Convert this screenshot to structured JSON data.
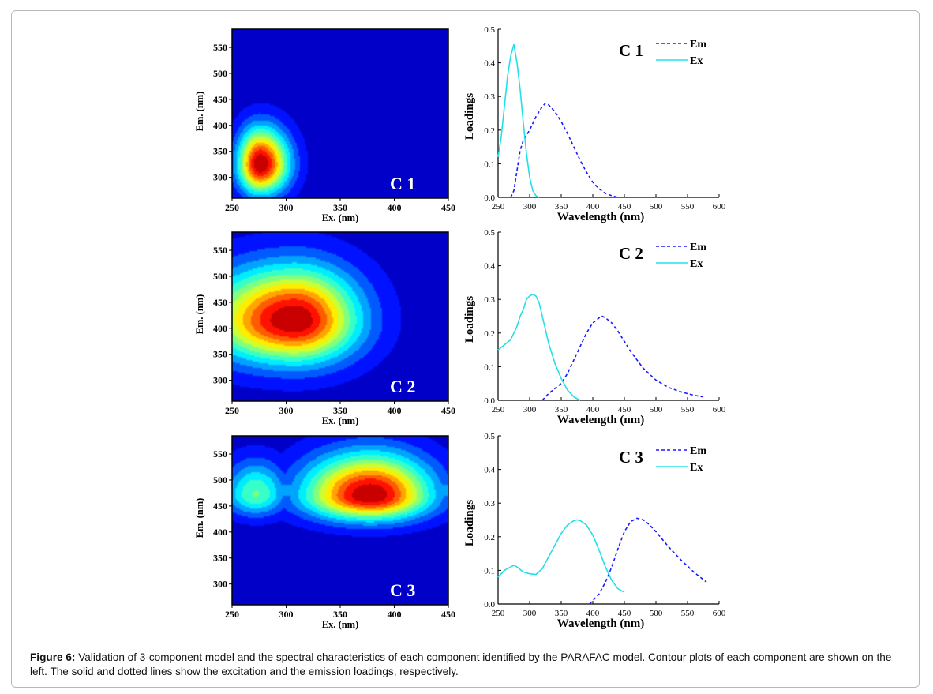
{
  "caption": {
    "label": "Figure 6:",
    "text": "Validation of 3-component model and the spectral characteristics of each component identified by the PARAFAC model. Contour plots of each component are shown on the left. The solid and dotted lines show the excitation and the emission loadings, respectively."
  },
  "colors": {
    "em_line": "#1a1aff",
    "ex_line": "#22e0e8",
    "contour_low": "#00008f",
    "contour_high": "#8b0000"
  },
  "chart_data": [
    {
      "type": "heatmap",
      "panel": "C 1",
      "label": "C 1",
      "xlabel": "Ex. (nm)",
      "ylabel": "Em. (nm)",
      "xlim": [
        250,
        450
      ],
      "ylim": [
        260,
        585
      ],
      "xticks": [
        250,
        300,
        350,
        400,
        450
      ],
      "yticks": [
        300,
        350,
        400,
        450,
        500,
        550
      ],
      "peaks": [
        {
          "ex": 276,
          "em": 325,
          "intensity": 1.0
        }
      ]
    },
    {
      "type": "line",
      "panel": "C 1",
      "label": "C 1",
      "xlabel": "Wavelength (nm)",
      "ylabel": "Loadings",
      "xlim": [
        250,
        600
      ],
      "ylim": [
        0,
        0.5
      ],
      "xticks": [
        250,
        300,
        350,
        400,
        450,
        500,
        550,
        600
      ],
      "yticks": [
        0.0,
        0.1,
        0.2,
        0.3,
        0.4,
        0.5
      ],
      "legend_position": "top-right",
      "series": [
        {
          "name": "Em",
          "style": "dashed",
          "x": [
            270,
            275,
            280,
            285,
            290,
            300,
            310,
            320,
            325,
            330,
            340,
            350,
            360,
            370,
            380,
            390,
            400,
            410,
            420,
            430,
            440
          ],
          "y": [
            0.0,
            0.02,
            0.08,
            0.14,
            0.17,
            0.2,
            0.24,
            0.27,
            0.28,
            0.275,
            0.255,
            0.225,
            0.19,
            0.15,
            0.11,
            0.075,
            0.045,
            0.025,
            0.012,
            0.005,
            0.0
          ]
        },
        {
          "name": "Ex",
          "style": "solid",
          "x": [
            250,
            255,
            260,
            265,
            270,
            275,
            280,
            285,
            290,
            295,
            300,
            305,
            310,
            315
          ],
          "y": [
            0.12,
            0.18,
            0.27,
            0.36,
            0.42,
            0.455,
            0.4,
            0.32,
            0.22,
            0.13,
            0.06,
            0.02,
            0.005,
            0.0
          ]
        }
      ]
    },
    {
      "type": "heatmap",
      "panel": "C 2",
      "label": "C 2",
      "xlabel": "Ex. (nm)",
      "ylabel": "Em. (nm)",
      "xlim": [
        250,
        450
      ],
      "ylim": [
        260,
        585
      ],
      "xticks": [
        250,
        300,
        350,
        400,
        450
      ],
      "yticks": [
        300,
        350,
        400,
        450,
        500,
        550
      ],
      "peaks": [
        {
          "ex": 308,
          "em": 415,
          "intensity": 1.0
        }
      ]
    },
    {
      "type": "line",
      "panel": "C 2",
      "label": "C 2",
      "xlabel": "Wavelength (nm)",
      "ylabel": "Loadings",
      "xlim": [
        250,
        600
      ],
      "ylim": [
        0,
        0.5
      ],
      "xticks": [
        250,
        300,
        350,
        400,
        450,
        500,
        550,
        600
      ],
      "yticks": [
        0.0,
        0.1,
        0.2,
        0.3,
        0.4,
        0.5
      ],
      "legend_position": "top-right",
      "series": [
        {
          "name": "Em",
          "style": "dashed",
          "x": [
            320,
            330,
            340,
            350,
            360,
            370,
            380,
            390,
            400,
            410,
            415,
            420,
            430,
            440,
            450,
            460,
            470,
            480,
            500,
            520,
            540,
            560,
            575
          ],
          "y": [
            0.0,
            0.02,
            0.035,
            0.05,
            0.08,
            0.12,
            0.16,
            0.2,
            0.23,
            0.245,
            0.25,
            0.245,
            0.23,
            0.205,
            0.175,
            0.145,
            0.12,
            0.095,
            0.06,
            0.038,
            0.025,
            0.015,
            0.01
          ]
        },
        {
          "name": "Ex",
          "style": "solid",
          "x": [
            250,
            260,
            270,
            275,
            280,
            285,
            290,
            295,
            300,
            305,
            310,
            315,
            320,
            330,
            340,
            350,
            360,
            370,
            380
          ],
          "y": [
            0.15,
            0.165,
            0.18,
            0.2,
            0.22,
            0.25,
            0.27,
            0.3,
            0.31,
            0.315,
            0.31,
            0.29,
            0.25,
            0.17,
            0.11,
            0.065,
            0.03,
            0.01,
            0.0
          ]
        }
      ]
    },
    {
      "type": "heatmap",
      "panel": "C 3",
      "label": "C 3",
      "xlabel": "Ex. (nm)",
      "ylabel": "Em. (nm)",
      "xlim": [
        250,
        450
      ],
      "ylim": [
        260,
        585
      ],
      "xticks": [
        250,
        300,
        350,
        400,
        450
      ],
      "yticks": [
        300,
        350,
        400,
        450,
        500,
        550
      ],
      "peaks": [
        {
          "ex": 378,
          "em": 470,
          "intensity": 1.0
        },
        {
          "ex": 272,
          "em": 472,
          "intensity": 0.45
        }
      ]
    },
    {
      "type": "line",
      "panel": "C 3",
      "label": "C 3",
      "xlabel": "Wavelength (nm)",
      "ylabel": "Loadings",
      "xlim": [
        250,
        600
      ],
      "ylim": [
        0,
        0.5
      ],
      "xticks": [
        250,
        300,
        350,
        400,
        450,
        500,
        550,
        600
      ],
      "yticks": [
        0.0,
        0.1,
        0.2,
        0.3,
        0.4,
        0.5
      ],
      "legend_position": "top-right",
      "series": [
        {
          "name": "Em",
          "style": "dashed",
          "x": [
            395,
            400,
            410,
            420,
            430,
            440,
            450,
            460,
            470,
            480,
            490,
            500,
            520,
            540,
            560,
            580
          ],
          "y": [
            0.0,
            0.01,
            0.03,
            0.065,
            0.11,
            0.165,
            0.215,
            0.245,
            0.255,
            0.25,
            0.235,
            0.215,
            0.17,
            0.13,
            0.095,
            0.065
          ]
        },
        {
          "name": "Ex",
          "style": "solid",
          "x": [
            250,
            260,
            270,
            275,
            280,
            290,
            300,
            310,
            320,
            330,
            340,
            350,
            360,
            370,
            375,
            380,
            390,
            400,
            410,
            420,
            430,
            440,
            450
          ],
          "y": [
            0.08,
            0.1,
            0.11,
            0.115,
            0.11,
            0.095,
            0.09,
            0.088,
            0.105,
            0.14,
            0.175,
            0.21,
            0.235,
            0.248,
            0.25,
            0.248,
            0.235,
            0.205,
            0.16,
            0.11,
            0.07,
            0.045,
            0.035
          ]
        }
      ]
    }
  ]
}
